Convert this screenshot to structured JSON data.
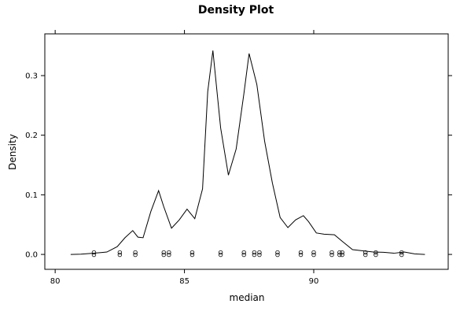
{
  "chart_data": {
    "type": "line",
    "title": "Density Plot",
    "xlabel": "median",
    "ylabel": "Density",
    "xlim": [
      79.6,
      95.2
    ],
    "ylim": [
      -0.025,
      0.37
    ],
    "xticks": [
      80,
      85,
      90
    ],
    "yticks": [
      0.0,
      0.1,
      0.2,
      0.3
    ],
    "ytick_labels": [
      "0.0",
      "0.1",
      "0.2",
      "0.3"
    ],
    "grid": false,
    "series": [
      {
        "type": "line",
        "x": [
          80.6,
          81.0,
          81.5,
          82.0,
          82.4,
          82.7,
          83.0,
          83.2,
          83.4,
          83.7,
          84.0,
          84.2,
          84.5,
          84.8,
          85.1,
          85.4,
          85.7,
          85.9,
          86.1,
          86.4,
          86.7,
          87.0,
          87.3,
          87.5,
          87.8,
          88.1,
          88.4,
          88.7,
          89.0,
          89.3,
          89.6,
          89.8,
          90.1,
          90.4,
          90.8,
          91.1,
          91.5,
          91.9,
          92.3,
          92.7,
          93.1,
          93.5,
          93.9,
          94.3
        ],
        "y": [
          0.0,
          0.0005,
          0.002,
          0.004,
          0.013,
          0.028,
          0.04,
          0.029,
          0.028,
          0.072,
          0.107,
          0.08,
          0.044,
          0.058,
          0.076,
          0.06,
          0.11,
          0.273,
          0.342,
          0.212,
          0.133,
          0.177,
          0.27,
          0.337,
          0.285,
          0.19,
          0.12,
          0.062,
          0.045,
          0.058,
          0.065,
          0.055,
          0.036,
          0.034,
          0.033,
          0.022,
          0.008,
          0.006,
          0.004,
          0.0035,
          0.002,
          0.004,
          0.001,
          0.0
        ]
      },
      {
        "type": "rug",
        "x": [
          81.5,
          82.5,
          83.1,
          84.2,
          84.4,
          85.3,
          86.4,
          87.3,
          87.7,
          87.9,
          88.6,
          89.5,
          90.0,
          90.7,
          91.0,
          91.1,
          92.0,
          92.4,
          93.4
        ]
      }
    ]
  }
}
